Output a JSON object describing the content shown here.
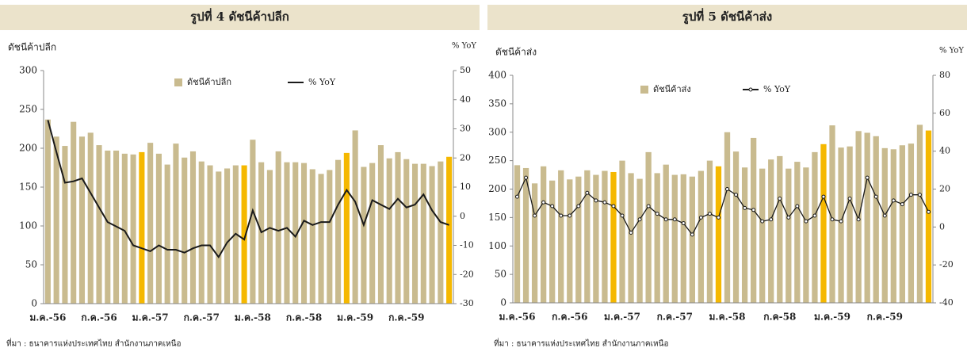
{
  "chart_data": [
    {
      "type": "bar-line",
      "title": "รูปที่ 4 ดัชนีค้าปลีก",
      "ylabel": "ดัชนีค้าปลีก",
      "y2label": "% YoY",
      "source": "ที่มา : ธนาคารแห่งประเทศไทย สำนักงานภาคเหนือ",
      "categories": [
        "ม.ค.-56",
        null,
        null,
        null,
        null,
        null,
        "ก.ค.-56",
        null,
        null,
        null,
        null,
        null,
        "ม.ค.-57",
        null,
        null,
        null,
        null,
        null,
        "ก.ค.-57",
        null,
        null,
        null,
        null,
        null,
        "ม.ค.-58",
        null,
        null,
        null,
        null,
        null,
        "ก.ค.-58",
        null,
        null,
        null,
        null,
        null,
        "ม.ค.-59",
        null,
        null,
        null,
        null,
        null,
        "ก.ค.-59",
        null,
        null,
        null,
        null,
        null
      ],
      "ylim": [
        0,
        300
      ],
      "yticks": [
        0,
        50,
        100,
        150,
        200,
        250,
        300
      ],
      "y2lim": [
        -30,
        50
      ],
      "y2ticks": [
        -30,
        -20,
        -10,
        0,
        10,
        20,
        30,
        40,
        50
      ],
      "markers": false,
      "series": [
        {
          "name": "ดัชนีค้าปลีก",
          "kind": "bar",
          "color": "#c9bb8f",
          "colors": [
            "#c9bb8f",
            "#c9bb8f",
            "#c9bb8f",
            "#c9bb8f",
            "#c9bb8f",
            "#c9bb8f",
            "#c9bb8f",
            "#c9bb8f",
            "#c9bb8f",
            "#c9bb8f",
            "#c9bb8f",
            "#f5b800",
            "#c9bb8f",
            "#c9bb8f",
            "#c9bb8f",
            "#c9bb8f",
            "#c9bb8f",
            "#c9bb8f",
            "#c9bb8f",
            "#c9bb8f",
            "#c9bb8f",
            "#c9bb8f",
            "#c9bb8f",
            "#f5b800",
            "#c9bb8f",
            "#c9bb8f",
            "#c9bb8f",
            "#c9bb8f",
            "#c9bb8f",
            "#c9bb8f",
            "#c9bb8f",
            "#c9bb8f",
            "#c9bb8f",
            "#c9bb8f",
            "#c9bb8f",
            "#f5b800",
            "#c9bb8f",
            "#c9bb8f",
            "#c9bb8f",
            "#c9bb8f",
            "#c9bb8f",
            "#c9bb8f",
            "#c9bb8f",
            "#c9bb8f",
            "#c9bb8f",
            "#c9bb8f",
            "#c9bb8f",
            "#f5b800"
          ],
          "values": [
            237,
            215,
            203,
            234,
            215,
            220,
            204,
            197,
            197,
            193,
            192,
            195,
            207,
            193,
            179,
            206,
            188,
            196,
            183,
            178,
            170,
            174,
            178,
            178,
            211,
            182,
            172,
            196,
            182,
            182,
            181,
            173,
            167,
            172,
            185,
            194,
            223,
            176,
            181,
            204,
            187,
            195,
            186,
            180,
            180,
            177,
            183,
            189
          ]
        },
        {
          "name": "% YoY",
          "kind": "line",
          "axis": "y2",
          "color": "#1a1a1a",
          "values": [
            33,
            22,
            11.5,
            12,
            13,
            8,
            3,
            -2,
            -3.5,
            -5,
            -10,
            -11,
            -12,
            -10,
            -11.5,
            -11.5,
            -12.5,
            -11,
            -10,
            -10,
            -14,
            -9,
            -6,
            -8,
            2,
            -5.5,
            -4,
            -5,
            -4,
            -7,
            -1.5,
            -3,
            -2,
            -2,
            4,
            9,
            5,
            -3,
            5.5,
            4,
            2.5,
            6,
            3,
            4,
            7.5,
            2,
            -2,
            -3
          ]
        }
      ]
    },
    {
      "type": "bar-line",
      "title": "รูปที่ 5 ดัชนีค้าส่ง",
      "ylabel": "ดัชนีค้าส่ง",
      "y2label": "% YoY",
      "source": "ที่มา : ธนาคารแห่งประเทศไทย สำนักงานภาคเหนือ",
      "categories": [
        "ม.ค.-56",
        null,
        null,
        null,
        null,
        null,
        "ก.ค.-56",
        null,
        null,
        null,
        null,
        null,
        "ม.ค.-57",
        null,
        null,
        null,
        null,
        null,
        "ก.ค.-57",
        null,
        null,
        null,
        null,
        null,
        "ม.ค.-58",
        null,
        null,
        null,
        null,
        null,
        "ก.ค-58",
        null,
        null,
        null,
        null,
        null,
        "ม.ค.-59",
        null,
        null,
        null,
        null,
        null,
        "ก.ค.-59",
        null,
        null,
        null,
        null,
        null
      ],
      "ylim": [
        0,
        400
      ],
      "yticks": [
        0,
        50,
        100,
        150,
        200,
        250,
        300,
        350,
        400
      ],
      "y2lim": [
        -40,
        80
      ],
      "y2ticks": [
        -40,
        -20,
        0,
        20,
        40,
        60,
        80
      ],
      "markers": true,
      "series": [
        {
          "name": "ดัชนีค้าส่ง",
          "kind": "bar",
          "color": "#c9bb8f",
          "colors": [
            "#c9bb8f",
            "#c9bb8f",
            "#c9bb8f",
            "#c9bb8f",
            "#c9bb8f",
            "#c9bb8f",
            "#c9bb8f",
            "#c9bb8f",
            "#c9bb8f",
            "#c9bb8f",
            "#c9bb8f",
            "#f5b800",
            "#c9bb8f",
            "#c9bb8f",
            "#c9bb8f",
            "#c9bb8f",
            "#c9bb8f",
            "#c9bb8f",
            "#c9bb8f",
            "#c9bb8f",
            "#c9bb8f",
            "#c9bb8f",
            "#c9bb8f",
            "#f5b800",
            "#c9bb8f",
            "#c9bb8f",
            "#c9bb8f",
            "#c9bb8f",
            "#c9bb8f",
            "#c9bb8f",
            "#c9bb8f",
            "#c9bb8f",
            "#c9bb8f",
            "#c9bb8f",
            "#c9bb8f",
            "#f5b800",
            "#c9bb8f",
            "#c9bb8f",
            "#c9bb8f",
            "#c9bb8f",
            "#c9bb8f",
            "#c9bb8f",
            "#c9bb8f",
            "#c9bb8f",
            "#c9bb8f",
            "#c9bb8f",
            "#c9bb8f",
            "#f5b800"
          ],
          "values": [
            242,
            237,
            210,
            240,
            215,
            233,
            217,
            222,
            233,
            225,
            232,
            230,
            250,
            228,
            218,
            265,
            228,
            243,
            225,
            226,
            222,
            232,
            250,
            240,
            300,
            266,
            238,
            290,
            236,
            252,
            258,
            236,
            248,
            238,
            265,
            279,
            312,
            273,
            275,
            302,
            299,
            293,
            272,
            270,
            277,
            280,
            313,
            303
          ]
        },
        {
          "name": "% YoY",
          "kind": "line",
          "axis": "y2",
          "color": "#1a1a1a",
          "values": [
            16,
            26,
            6,
            13,
            11,
            6,
            6,
            11,
            18,
            14,
            13,
            11,
            6,
            -3,
            4,
            11,
            7,
            4,
            4,
            2,
            -4,
            5,
            7,
            5,
            20,
            17,
            10,
            9,
            3,
            4,
            15,
            5,
            11,
            3,
            6,
            16,
            4,
            3,
            15,
            4,
            26,
            16,
            6,
            14,
            12,
            17,
            17,
            8
          ]
        }
      ]
    }
  ]
}
